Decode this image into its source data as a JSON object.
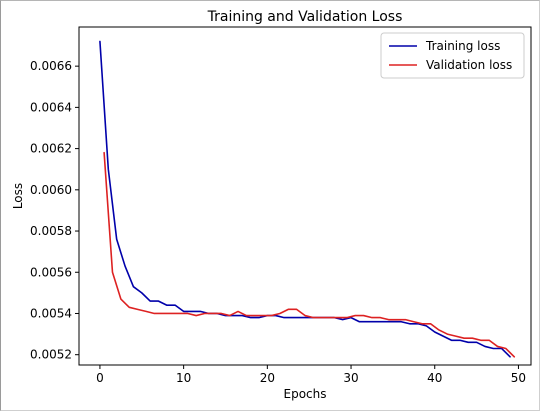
{
  "chart_data": {
    "type": "line",
    "title": "Training and Validation Loss",
    "xlabel": "Epochs",
    "ylabel": "Loss",
    "xlim": [
      -2.5,
      51.5
    ],
    "ylim": [
      0.00515,
      0.00679
    ],
    "x_ticks": [
      0,
      10,
      20,
      30,
      40,
      50
    ],
    "y_ticks": [
      0.0052,
      0.0054,
      0.0056,
      0.0058,
      0.006,
      0.0062,
      0.0064,
      0.0066
    ],
    "y_tick_labels": [
      "0.0052",
      "0.0054",
      "0.0056",
      "0.0058",
      "0.0060",
      "0.0062",
      "0.0064",
      "0.0066"
    ],
    "grid": false,
    "legend_position": "top-right",
    "series": [
      {
        "name": "Training loss",
        "color": "#0000aa",
        "x": [
          0,
          1,
          2,
          3,
          4,
          5,
          6,
          7,
          8,
          9,
          10,
          11,
          12,
          13,
          14,
          15,
          16,
          17,
          18,
          19,
          20,
          21,
          22,
          23,
          24,
          25,
          26,
          27,
          28,
          29,
          30,
          31,
          32,
          33,
          34,
          35,
          36,
          37,
          38,
          39,
          40,
          41,
          42,
          43,
          44,
          45,
          46,
          47,
          48,
          49
        ],
        "values": [
          0.00672,
          0.0061,
          0.00576,
          0.00563,
          0.00553,
          0.0055,
          0.00546,
          0.00546,
          0.00544,
          0.00544,
          0.00541,
          0.00541,
          0.00541,
          0.0054,
          0.0054,
          0.00539,
          0.00539,
          0.00539,
          0.00538,
          0.00538,
          0.00539,
          0.00539,
          0.00538,
          0.00538,
          0.00538,
          0.00538,
          0.00538,
          0.00538,
          0.00538,
          0.00537,
          0.00538,
          0.00536,
          0.00536,
          0.00536,
          0.00536,
          0.00536,
          0.00536,
          0.00535,
          0.00535,
          0.00534,
          0.00531,
          0.00529,
          0.00527,
          0.00527,
          0.00526,
          0.00526,
          0.00524,
          0.00523,
          0.00523,
          0.00519
        ]
      },
      {
        "name": "Validation loss",
        "color": "#dd2222",
        "x": [
          0.5,
          1.5,
          2.5,
          3.5,
          4.5,
          5.5,
          6.5,
          7.5,
          8.5,
          9.5,
          10.5,
          11.5,
          12.5,
          13.5,
          14.5,
          15.5,
          16.5,
          17.5,
          18.5,
          19.5,
          20.5,
          21.5,
          22.5,
          23.5,
          24.5,
          25.5,
          26.5,
          27.5,
          28.5,
          29.5,
          30.5,
          31.5,
          32.5,
          33.5,
          34.5,
          35.5,
          36.5,
          37.5,
          38.5,
          39.5,
          40.5,
          41.5,
          42.5,
          43.5,
          44.5,
          45.5,
          46.5,
          47.5,
          48.5,
          49.5
        ],
        "values": [
          0.00618,
          0.0056,
          0.00547,
          0.00543,
          0.00542,
          0.00541,
          0.0054,
          0.0054,
          0.0054,
          0.0054,
          0.0054,
          0.00539,
          0.0054,
          0.0054,
          0.0054,
          0.00539,
          0.00541,
          0.00539,
          0.00539,
          0.00539,
          0.00539,
          0.0054,
          0.00542,
          0.00542,
          0.00539,
          0.00538,
          0.00538,
          0.00538,
          0.00538,
          0.00538,
          0.00539,
          0.00539,
          0.00538,
          0.00538,
          0.00537,
          0.00537,
          0.00537,
          0.00536,
          0.00535,
          0.00535,
          0.00532,
          0.0053,
          0.00529,
          0.00528,
          0.00528,
          0.00527,
          0.00527,
          0.00524,
          0.00523,
          0.00519
        ]
      }
    ]
  }
}
